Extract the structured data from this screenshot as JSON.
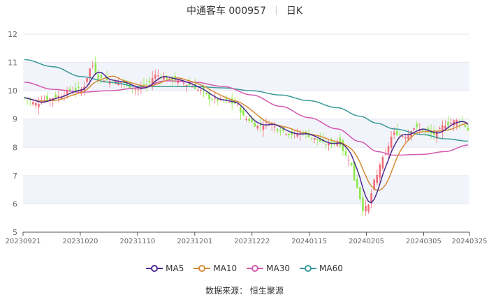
{
  "header": {
    "stock_name_code": "中通客车 000957",
    "period": "日K"
  },
  "source": "数据来源： 恒生聚源",
  "colors": {
    "up": "#f06c78",
    "down": "#8ee84a",
    "ma5": "#4b2a8f",
    "ma10": "#d58a35",
    "ma30": "#d35aae",
    "ma60": "#3a9a9a",
    "band": "#f2f4fb",
    "grid": "#e6e6ee",
    "axis": "#666666"
  },
  "chart_data": {
    "type": "candlestick",
    "ylim": [
      5,
      12
    ],
    "y_ticks": [
      5,
      6,
      7,
      8,
      9,
      10,
      11,
      12
    ],
    "x_tick_labels": [
      "20230921",
      "20231020",
      "20231110",
      "20231201",
      "20231222",
      "20240115",
      "20240205",
      "20240305",
      "20240325"
    ],
    "x_tick_index": [
      0,
      20,
      40,
      60,
      80,
      100,
      120,
      140,
      156
    ],
    "legend": [
      {
        "name": "MA5",
        "color_key": "ma5"
      },
      {
        "name": "MA10",
        "color_key": "ma10"
      },
      {
        "name": "MA30",
        "color_key": "ma30"
      },
      {
        "name": "MA60",
        "color_key": "ma60"
      }
    ],
    "close_anchors": [
      [
        0,
        9.75
      ],
      [
        4,
        9.55
      ],
      [
        8,
        9.7
      ],
      [
        12,
        9.8
      ],
      [
        16,
        10.0
      ],
      [
        20,
        10.05
      ],
      [
        24,
        10.9
      ],
      [
        26,
        10.45
      ],
      [
        30,
        10.35
      ],
      [
        34,
        10.3
      ],
      [
        38,
        10.1
      ],
      [
        40,
        10.05
      ],
      [
        43,
        10.2
      ],
      [
        46,
        10.55
      ],
      [
        50,
        10.45
      ],
      [
        54,
        10.35
      ],
      [
        58,
        10.2
      ],
      [
        62,
        10.0
      ],
      [
        66,
        9.7
      ],
      [
        70,
        9.65
      ],
      [
        74,
        9.55
      ],
      [
        78,
        9.0
      ],
      [
        82,
        8.75
      ],
      [
        86,
        8.85
      ],
      [
        90,
        8.6
      ],
      [
        94,
        8.45
      ],
      [
        98,
        8.5
      ],
      [
        102,
        8.3
      ],
      [
        106,
        8.1
      ],
      [
        110,
        8.2
      ],
      [
        114,
        7.6
      ],
      [
        117,
        6.6
      ],
      [
        119,
        5.8
      ],
      [
        121,
        5.95
      ],
      [
        123,
        6.8
      ],
      [
        126,
        7.6
      ],
      [
        130,
        8.5
      ],
      [
        134,
        8.4
      ],
      [
        137,
        8.7
      ],
      [
        140,
        8.6
      ],
      [
        144,
        8.45
      ],
      [
        148,
        8.8
      ],
      [
        152,
        8.95
      ],
      [
        154,
        8.9
      ],
      [
        156,
        8.6
      ]
    ],
    "ma30_anchors": [
      [
        0,
        10.3
      ],
      [
        10,
        10.05
      ],
      [
        20,
        9.95
      ],
      [
        30,
        10.0
      ],
      [
        40,
        10.1
      ],
      [
        50,
        10.35
      ],
      [
        60,
        10.3
      ],
      [
        70,
        10.15
      ],
      [
        80,
        9.85
      ],
      [
        90,
        9.45
      ],
      [
        100,
        9.05
      ],
      [
        110,
        8.65
      ],
      [
        118,
        8.2
      ],
      [
        124,
        7.85
      ],
      [
        130,
        7.72
      ],
      [
        140,
        7.75
      ],
      [
        148,
        7.85
      ],
      [
        156,
        8.08
      ]
    ],
    "ma60_anchors": [
      [
        0,
        11.1
      ],
      [
        10,
        10.85
      ],
      [
        20,
        10.5
      ],
      [
        30,
        10.3
      ],
      [
        40,
        10.15
      ],
      [
        50,
        10.15
      ],
      [
        60,
        10.15
      ],
      [
        70,
        10.1
      ],
      [
        80,
        10.0
      ],
      [
        90,
        9.85
      ],
      [
        100,
        9.65
      ],
      [
        110,
        9.4
      ],
      [
        118,
        9.1
      ],
      [
        124,
        8.85
      ],
      [
        130,
        8.65
      ],
      [
        140,
        8.45
      ],
      [
        148,
        8.3
      ],
      [
        156,
        8.22
      ]
    ]
  }
}
